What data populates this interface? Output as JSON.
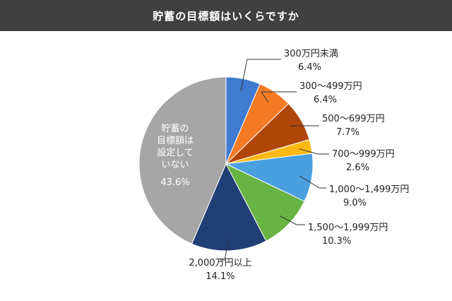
{
  "chart_data": {
    "type": "pie",
    "title": "貯蓄の目標額はいくらですか",
    "start": "top",
    "direction": "clockwise",
    "slices": [
      {
        "name": "300万円未満",
        "value": 6.4,
        "label": "6.4%",
        "color": "#3f7bd0"
      },
      {
        "name": "300〜499万円",
        "value": 6.4,
        "label": "6.4%",
        "color": "#f47b25"
      },
      {
        "name": "500〜699万円",
        "value": 7.7,
        "label": "7.7%",
        "color": "#b0460a"
      },
      {
        "name": "700〜999万円",
        "value": 2.6,
        "label": "2.6%",
        "color": "#fdb913"
      },
      {
        "name": "1,000〜1,499万円",
        "value": 9.0,
        "label": "9.0%",
        "color": "#4a9fdf"
      },
      {
        "name": "1,500〜1,999万円",
        "value": 10.3,
        "label": "10.3%",
        "color": "#67b343"
      },
      {
        "name": "2,000万円以上",
        "value": 14.1,
        "label": "14.1%",
        "color": "#1f3f75"
      },
      {
        "name_lines": [
          "貯蓄の",
          "目標額は",
          "設定して",
          "いない"
        ],
        "value": 43.6,
        "label": "43.6%",
        "color": "#a6a6a6"
      }
    ]
  }
}
